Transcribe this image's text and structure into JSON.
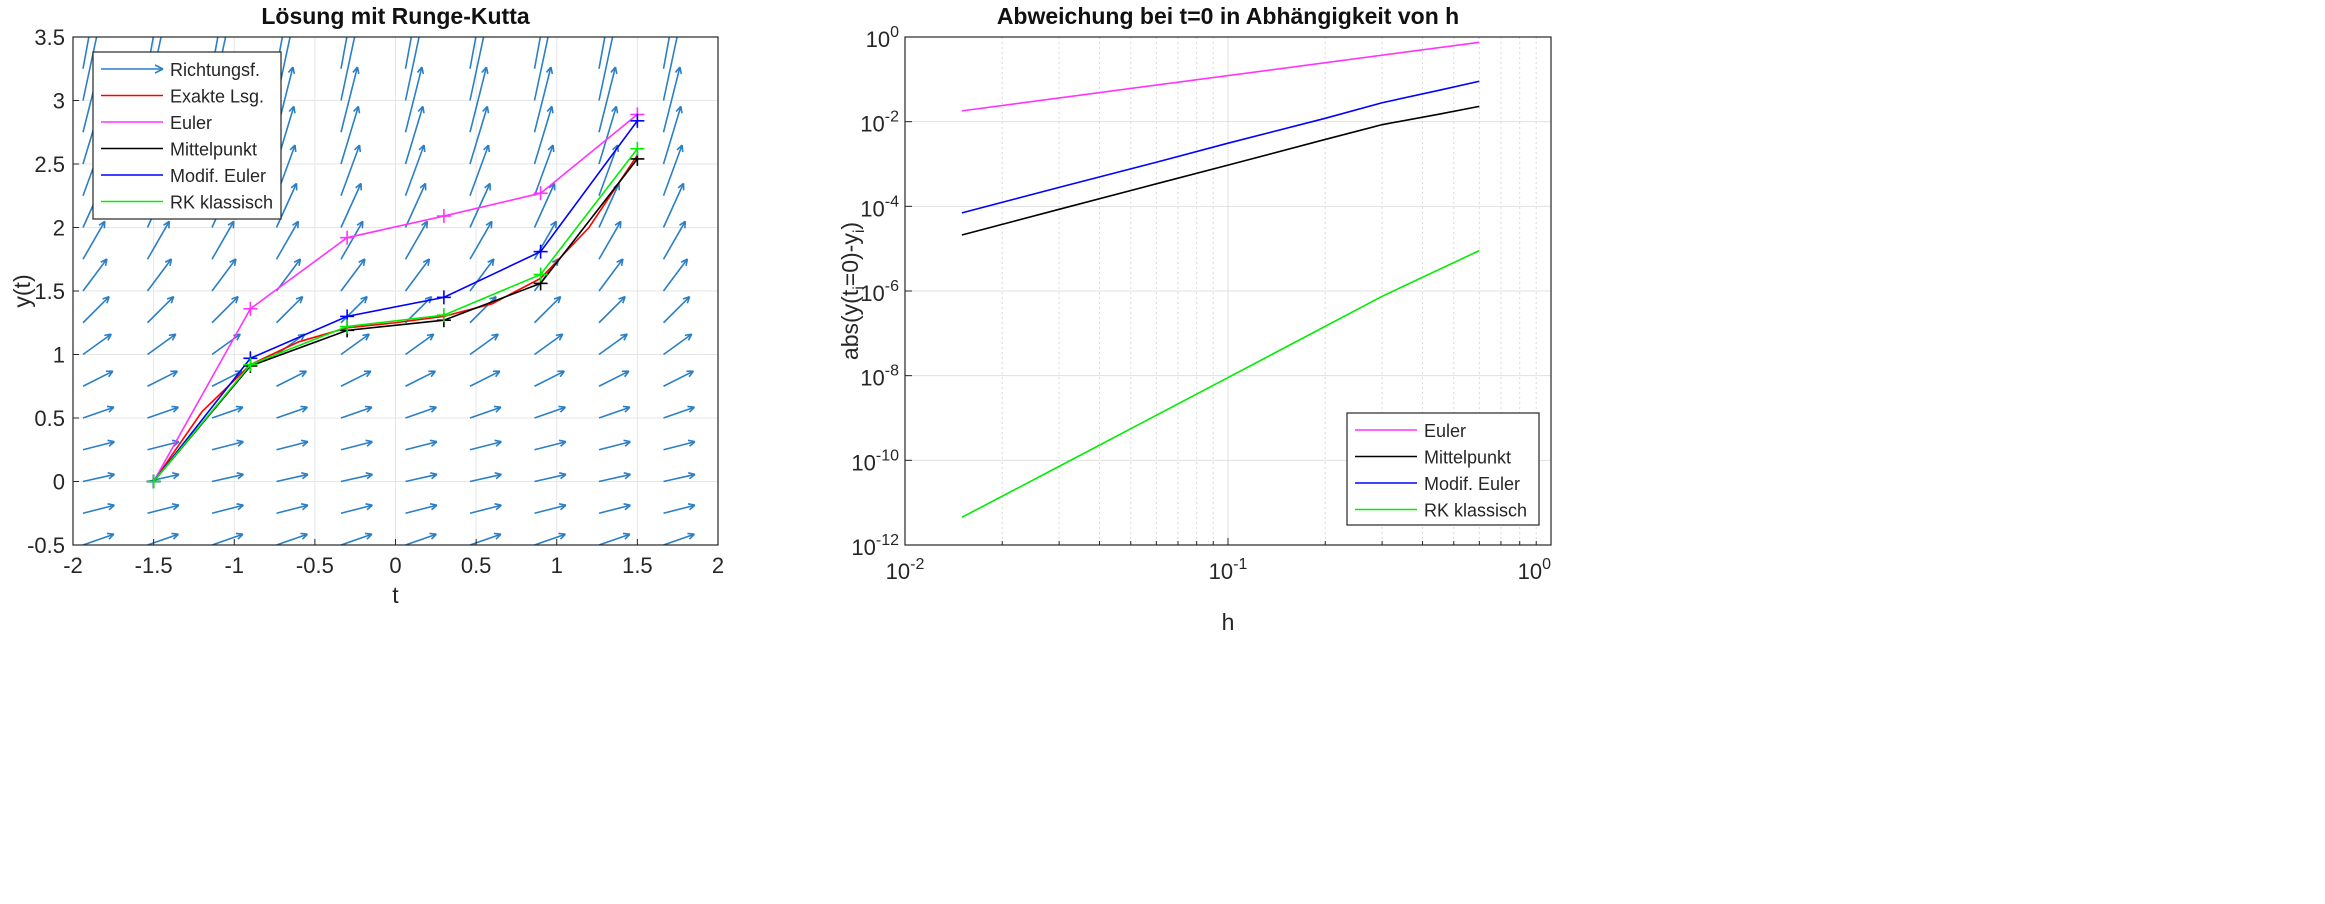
{
  "chart_data": [
    {
      "type": "line",
      "title": "Lösung mit Runge-Kutta",
      "xlabel": "t",
      "ylabel": "y(t)",
      "xlim": [
        -2,
        2
      ],
      "ylim": [
        -0.5,
        3.5
      ],
      "xticks": [
        -2,
        -1.5,
        -1,
        -0.5,
        0,
        0.5,
        1,
        1.5,
        2
      ],
      "xtick_labels": [
        "-2",
        "-1.5",
        "-1",
        "-0.5",
        "0",
        "0.5",
        "1",
        "1.5",
        "2"
      ],
      "yticks": [
        -0.5,
        0,
        0.5,
        1,
        1.5,
        2,
        2.5,
        3,
        3.5
      ],
      "ytick_labels": [
        "-0.5",
        "0",
        "0.5",
        "1",
        "1.5",
        "2",
        "2.5",
        "3",
        "3.5"
      ],
      "grid": true,
      "legend_position": "top-left",
      "quiver": {
        "name": "Richtungsf.",
        "color": "#2a7fc6",
        "t_grid": [
          -2,
          -1.6,
          -1.2,
          -0.8,
          -0.4,
          0,
          0.4,
          0.8,
          1.2,
          1.6
        ],
        "y_grid": [
          -0.5,
          -0.25,
          0,
          0.25,
          0.5,
          0.75,
          1,
          1.25,
          1.5,
          1.75,
          2,
          2.25,
          2.5,
          2.75,
          3,
          3.25
        ]
      },
      "series": [
        {
          "name": "Exakte Lsg.",
          "color": "#ff0000",
          "marker": "none",
          "x": [
            -1.5,
            -1.2,
            -0.9,
            -0.6,
            -0.3,
            0,
            0.3,
            0.6,
            0.9,
            1.2,
            1.5
          ],
          "y": [
            0,
            0.55,
            0.92,
            1.1,
            1.21,
            1.25,
            1.3,
            1.4,
            1.6,
            2.0,
            2.57
          ]
        },
        {
          "name": "Euler",
          "color": "#ff33ff",
          "marker": "+",
          "x": [
            -1.5,
            -0.9,
            -0.3,
            0.3,
            0.9,
            1.5
          ],
          "y": [
            0,
            1.36,
            1.92,
            2.09,
            2.27,
            2.89
          ]
        },
        {
          "name": "Mittelpunkt",
          "color": "#000000",
          "marker": "+",
          "x": [
            -1.5,
            -0.9,
            -0.3,
            0.3,
            0.9,
            1.5
          ],
          "y": [
            0,
            0.91,
            1.19,
            1.27,
            1.56,
            2.54
          ]
        },
        {
          "name": "Modif. Euler",
          "color": "#0000ff",
          "marker": "+",
          "x": [
            -1.5,
            -0.9,
            -0.3,
            0.3,
            0.9,
            1.5
          ],
          "y": [
            0,
            0.97,
            1.3,
            1.45,
            1.81,
            2.84
          ]
        },
        {
          "name": "RK klassisch",
          "color": "#00ee00",
          "marker": "+",
          "x": [
            -1.5,
            -0.9,
            -0.3,
            0.3,
            0.9,
            1.5
          ],
          "y": [
            0,
            0.92,
            1.22,
            1.31,
            1.63,
            2.62
          ]
        }
      ]
    },
    {
      "type": "line",
      "title": "Abweichung bei t=0 in Abhängigkeit von h",
      "xlabel": "h",
      "ylabel": "abs(y(t_i=0)-y_i)",
      "xscale": "log",
      "yscale": "log",
      "xlim": [
        0.01,
        1
      ],
      "ylim": [
        1e-12,
        1
      ],
      "xtick_labels": [
        {
          "base": "10",
          "exp": "-2"
        },
        {
          "base": "10",
          "exp": "-1"
        },
        {
          "base": "10",
          "exp": "0"
        }
      ],
      "ytick_labels": [
        {
          "base": "10",
          "exp": "-12"
        },
        {
          "base": "10",
          "exp": "-10"
        },
        {
          "base": "10",
          "exp": "-8"
        },
        {
          "base": "10",
          "exp": "-6"
        },
        {
          "base": "10",
          "exp": "-4"
        },
        {
          "base": "10",
          "exp": "-2"
        },
        {
          "base": "10",
          "exp": "0"
        }
      ],
      "grid": true,
      "legend_position": "bottom-right",
      "series": [
        {
          "name": "Euler",
          "color": "#ff33ff",
          "x": [
            0.015,
            0.6
          ],
          "y": [
            0.018,
            0.75
          ]
        },
        {
          "name": "Mittelpunkt",
          "color": "#000000",
          "x": [
            0.015,
            0.03,
            0.06,
            0.1,
            0.2,
            0.3,
            0.45,
            0.6
          ],
          "y": [
            2.1e-05,
            8.5e-05,
            0.00034,
            0.00094,
            0.0038,
            0.0085,
            0.015,
            0.023
          ]
        },
        {
          "name": "Modif. Euler",
          "color": "#0000ff",
          "x": [
            0.015,
            0.03,
            0.06,
            0.1,
            0.2,
            0.3,
            0.45,
            0.6
          ],
          "y": [
            7e-05,
            0.00028,
            0.0011,
            0.0031,
            0.012,
            0.028,
            0.055,
            0.09
          ]
        },
        {
          "name": "RK klassisch",
          "color": "#00ee00",
          "x": [
            0.015,
            0.03,
            0.1,
            0.3,
            0.6
          ],
          "y": [
            4.5e-12,
            7.2e-11,
            9e-09,
            7.5e-07,
            9e-06
          ]
        }
      ]
    }
  ]
}
